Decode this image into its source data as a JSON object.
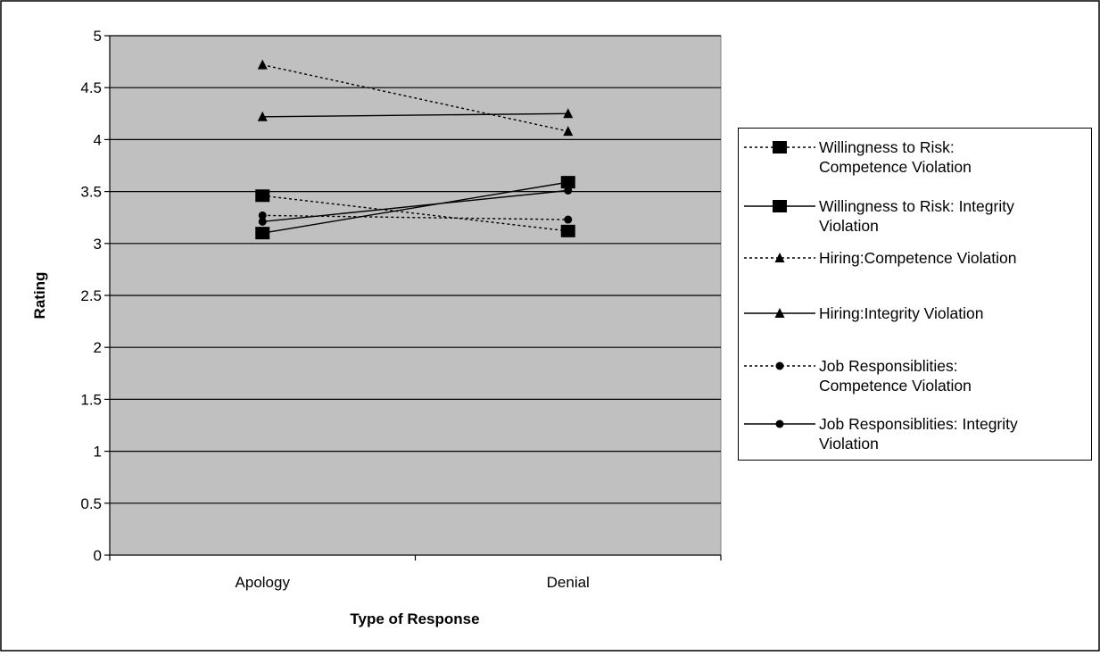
{
  "chart_data": {
    "type": "line",
    "title": "",
    "xlabel": "Type of Response",
    "ylabel": "Rating",
    "categories": [
      "Apology",
      "Denial"
    ],
    "ylim": [
      0,
      5
    ],
    "yticks": [
      "0",
      "0.5",
      "1",
      "1.5",
      "2",
      "2.5",
      "3",
      "3.5",
      "4",
      "4.5",
      "5"
    ],
    "grid": "horizontal",
    "legend_position": "right",
    "plot_background": "#c0c0c0",
    "series": [
      {
        "name": "Willingness to Risk: Competence Violation",
        "line_lines": [
          "Willingness to Risk:",
          "Competence Violation"
        ],
        "values": [
          3.46,
          3.12
        ],
        "style": "dotted",
        "marker": "square-large"
      },
      {
        "name": "Willingness to Risk: Integrity Violation",
        "line_lines": [
          "Willingness to Risk: Integrity",
          "Violation"
        ],
        "values": [
          3.1,
          3.59
        ],
        "style": "solid",
        "marker": "square-large"
      },
      {
        "name": "Hiring:Competence Violation",
        "line_lines": [
          "Hiring:Competence Violation"
        ],
        "values": [
          4.72,
          4.08
        ],
        "style": "dotted",
        "marker": "triangle"
      },
      {
        "name": "Hiring:Integrity Violation",
        "line_lines": [
          "Hiring:Integrity Violation"
        ],
        "values": [
          4.22,
          4.25
        ],
        "style": "solid",
        "marker": "triangle"
      },
      {
        "name": "Job Responsiblities: Competence Violation",
        "line_lines": [
          "Job Responsiblities:",
          "Competence Violation"
        ],
        "values": [
          3.27,
          3.23
        ],
        "style": "dotted",
        "marker": "circle"
      },
      {
        "name": "Job Responsiblities: Integrity Violation",
        "line_lines": [
          "Job Responsiblities: Integrity",
          "Violation"
        ],
        "values": [
          3.21,
          3.51
        ],
        "style": "solid",
        "marker": "circle"
      }
    ]
  }
}
